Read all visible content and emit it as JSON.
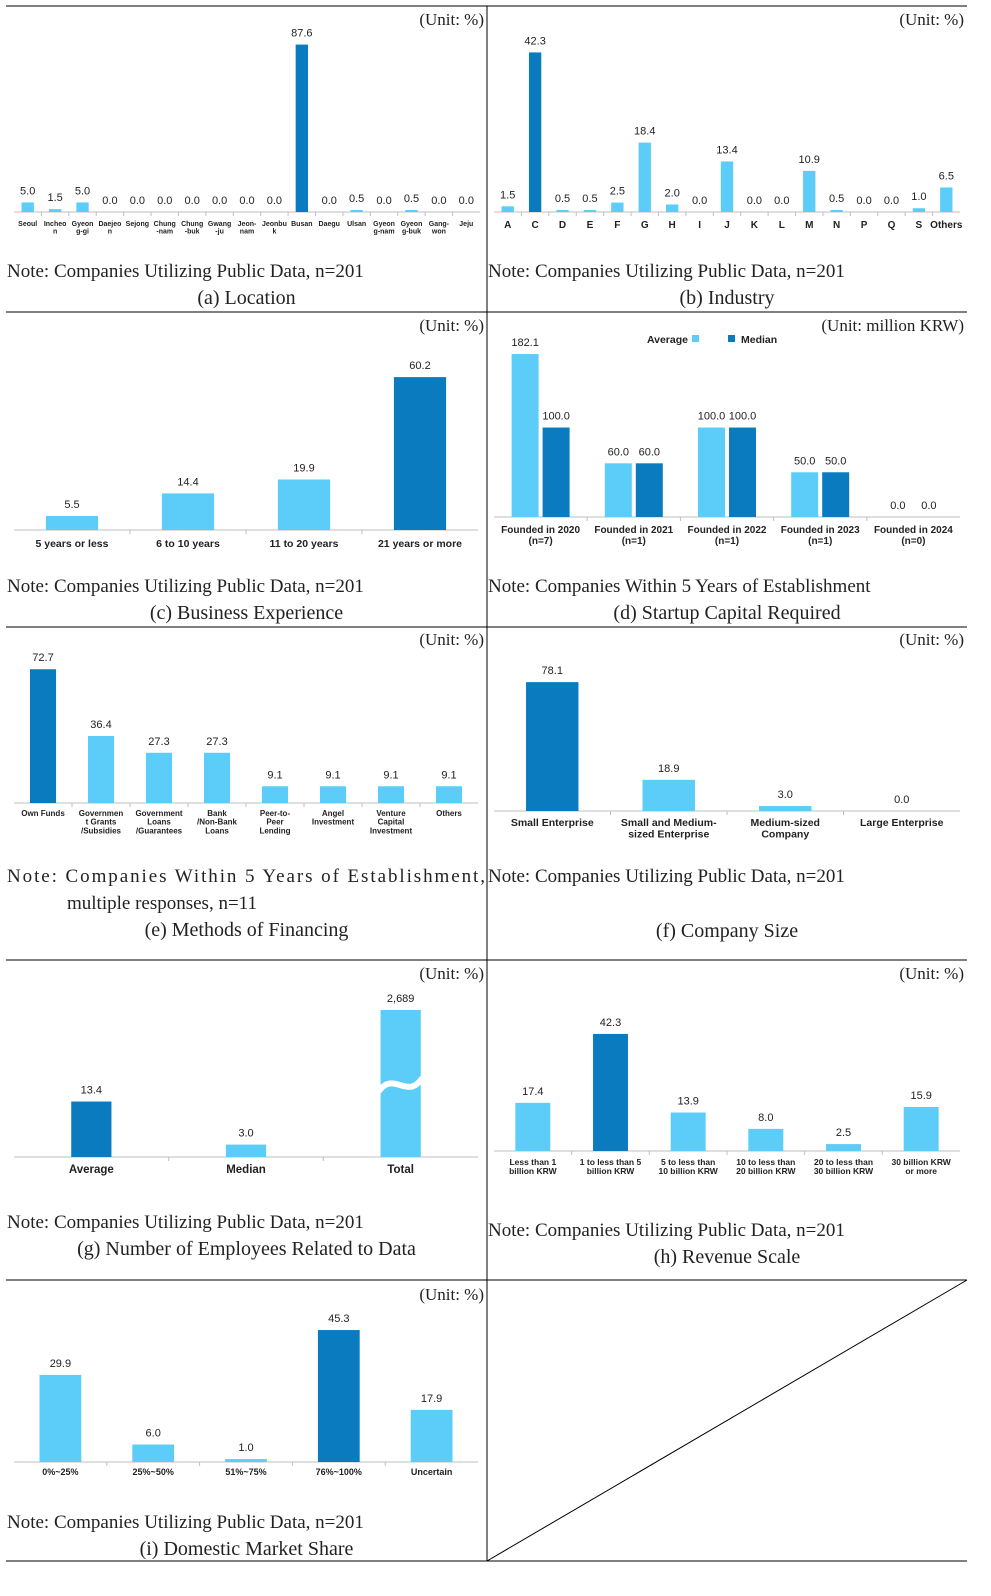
{
  "colors": {
    "light": "#5bcdf8",
    "dark": "#0a7bbf",
    "axis": "#bfbfbf",
    "text": "#222222",
    "border": "#000000"
  },
  "chart_data": [
    {
      "id": "a",
      "type": "bar",
      "unit": "(Unit: %)",
      "categories": [
        "Seoul",
        "Incheon",
        "Gyeongg-gi",
        "Daejeon",
        "Sejong",
        "Chung-nam",
        "Chung-buk",
        "Gwang-ju",
        "Jeon-nam",
        "Jeonbuk",
        "Busan",
        "Daegu",
        "Ulsan",
        "Gyeong-nam",
        "Gyeong-buk",
        "Gang-won",
        "Jeju"
      ],
      "tick_labels": [
        [
          "Seoul"
        ],
        [
          "Incheo",
          "n"
        ],
        [
          "Gyeon",
          "g-gi"
        ],
        [
          "Daejeo",
          "n"
        ],
        [
          "Sejong"
        ],
        [
          "Chung",
          "-nam"
        ],
        [
          "Chung",
          "-buk"
        ],
        [
          "Gwang",
          "-ju"
        ],
        [
          "Jeon-",
          "nam"
        ],
        [
          "Jeonbu",
          "k"
        ],
        [
          "Busan"
        ],
        [
          "Daegu"
        ],
        [
          "Ulsan"
        ],
        [
          "Gyeon",
          "g-nam"
        ],
        [
          "Gyeon",
          "g-buk"
        ],
        [
          "Gang-",
          "won"
        ],
        [
          "Jeju"
        ]
      ],
      "values": [
        5.0,
        1.5,
        5.0,
        0.0,
        0.0,
        0.0,
        0.0,
        0.0,
        0.0,
        0.0,
        87.6,
        0.0,
        0.5,
        0.0,
        0.5,
        0.0,
        0.0
      ],
      "labels": [
        "5.0",
        "1.5",
        "5.0",
        "0.0",
        "0.0",
        "0.0",
        "0.0",
        "0.0",
        "0.0",
        "0.0",
        "87.6",
        "0.0",
        "0.5",
        "0.0",
        "0.5",
        "0.0",
        "0.0"
      ],
      "highlight": [
        10
      ],
      "ylim": [
        0,
        90
      ],
      "note": [
        "Note: Companies Utilizing Public Data, n=201"
      ],
      "caption": "(a) Location"
    },
    {
      "id": "b",
      "type": "bar",
      "unit": "(Unit: %)",
      "categories": [
        "A",
        "C",
        "D",
        "E",
        "F",
        "G",
        "H",
        "I",
        "J",
        "K",
        "L",
        "M",
        "N",
        "P",
        "Q",
        "S",
        "Others"
      ],
      "tick_labels": [
        [
          "A"
        ],
        [
          "C"
        ],
        [
          "D"
        ],
        [
          "E"
        ],
        [
          "F"
        ],
        [
          "G"
        ],
        [
          "H"
        ],
        [
          "I"
        ],
        [
          "J"
        ],
        [
          "K"
        ],
        [
          "L"
        ],
        [
          "M"
        ],
        [
          "N"
        ],
        [
          "P"
        ],
        [
          "Q"
        ],
        [
          "S"
        ],
        [
          "Others"
        ]
      ],
      "values": [
        1.5,
        42.3,
        0.5,
        0.5,
        2.5,
        18.4,
        2.0,
        0.0,
        13.4,
        0.0,
        0.0,
        10.9,
        0.5,
        0.0,
        0.0,
        1.0,
        6.5
      ],
      "labels": [
        "1.5",
        "42.3",
        "0.5",
        "0.5",
        "2.5",
        "18.4",
        "2.0",
        "0.0",
        "13.4",
        "0.0",
        "0.0",
        "10.9",
        "0.5",
        "0.0",
        "0.0",
        "1.0",
        "6.5"
      ],
      "highlight": [
        1
      ],
      "ylim": [
        0,
        44
      ],
      "note": [
        "Note: Companies Utilizing Public Data, n=201"
      ],
      "caption": "(b) Industry"
    },
    {
      "id": "c",
      "type": "bar",
      "unit": "(Unit: %)",
      "categories": [
        "5 years or less",
        "6 to 10 years",
        "11 to 20 years",
        "21 years or more"
      ],
      "tick_labels": [
        [
          "5 years or less"
        ],
        [
          "6 to 10 years"
        ],
        [
          "11 to 20 years"
        ],
        [
          "21 years or more"
        ]
      ],
      "values": [
        5.5,
        14.4,
        19.9,
        60.2
      ],
      "labels": [
        "5.5",
        "14.4",
        "19.9",
        "60.2"
      ],
      "highlight": [
        3
      ],
      "ylim": [
        0,
        63
      ],
      "note": [
        "Note: Companies Utilizing Public Data, n=201"
      ],
      "caption": "(c) Business Experience"
    },
    {
      "id": "d",
      "type": "bar",
      "unit": "(Unit: million KRW)",
      "legend": [
        "Average",
        "Median"
      ],
      "categories": [
        "Founded in 2020",
        "Founded in 2021",
        "Founded in 2022",
        "Founded in 2023",
        "Founded in 2024"
      ],
      "tick_labels": [
        [
          "Founded in 2020",
          "(n=7)"
        ],
        [
          "Founded in 2021",
          "(n=1)"
        ],
        [
          "Founded in 2022",
          "(n=1)"
        ],
        [
          "Founded in 2023",
          "(n=1)"
        ],
        [
          "Founded in 2024",
          "(n=0)"
        ]
      ],
      "series": [
        {
          "name": "Average",
          "values": [
            182.1,
            60.0,
            100.0,
            50.0,
            0.0
          ],
          "labels": [
            "182.1",
            "60.0",
            "100.0",
            "50.0",
            "0.0"
          ]
        },
        {
          "name": "Median",
          "values": [
            100.0,
            60.0,
            100.0,
            50.0,
            0.0
          ],
          "labels": [
            "100.0",
            "60.0",
            "100.0",
            "50.0",
            "0.0"
          ]
        }
      ],
      "ylim": [
        0,
        190
      ],
      "note": [
        "Note: Companies Within 5 Years of Establishment"
      ],
      "caption": "(d) Startup Capital Required"
    },
    {
      "id": "e",
      "type": "bar",
      "unit": "(Unit: %)",
      "categories": [
        "Own Funds",
        "Government Grants/Subsidies",
        "Government Loans/Guarantees",
        "Bank/Non-Bank Loans",
        "Peer-to-Peer Lending",
        "Angel Investment",
        "Venture Capital Investment",
        "Others"
      ],
      "tick_labels": [
        [
          "Own Funds"
        ],
        [
          "Governmen",
          "t Grants",
          "/Subsidies"
        ],
        [
          "Government",
          "Loans",
          "/Guarantees"
        ],
        [
          "Bank",
          "/Non-Bank",
          "Loans"
        ],
        [
          "Peer-to-",
          "Peer",
          "Lending"
        ],
        [
          "Angel",
          "Investment"
        ],
        [
          "Venture",
          "Capital",
          "Investment"
        ],
        [
          "Others"
        ]
      ],
      "values": [
        72.7,
        36.4,
        27.3,
        27.3,
        9.1,
        9.1,
        9.1,
        9.1
      ],
      "labels": [
        "72.7",
        "36.4",
        "27.3",
        "27.3",
        "9.1",
        "9.1",
        "9.1",
        "9.1"
      ],
      "highlight": [
        0
      ],
      "ylim": [
        0,
        75
      ],
      "note": [
        "Note: Companies Within 5 Years of Establishment,",
        "multiple responses, n=11"
      ],
      "caption": "(e) Methods of Financing"
    },
    {
      "id": "f",
      "type": "bar",
      "unit": "(Unit: %)",
      "categories": [
        "Small Enterprise",
        "Small and Medium-sized Enterprise",
        "Medium-sized Company",
        "Large Enterprise"
      ],
      "tick_labels": [
        [
          "Small Enterprise"
        ],
        [
          "Small and Medium-",
          "sized Enterprise"
        ],
        [
          "Medium-sized",
          "Company"
        ],
        [
          "Large Enterprise"
        ]
      ],
      "values": [
        78.1,
        18.9,
        3.0,
        0.0
      ],
      "labels": [
        "78.1",
        "18.9",
        "3.0",
        "0.0"
      ],
      "highlight": [
        0
      ],
      "ylim": [
        0,
        80
      ],
      "note": [
        "Note: Companies Utilizing Public Data, n=201"
      ],
      "caption": "(f) Company Size"
    },
    {
      "id": "g",
      "type": "bar",
      "unit": "(Unit: %)",
      "categories": [
        "Average",
        "Median",
        "Total"
      ],
      "tick_labels": [
        [
          "Average"
        ],
        [
          "Median"
        ],
        [
          "Total"
        ]
      ],
      "values": [
        13.4,
        3.0,
        2689
      ],
      "labels": [
        "13.4",
        "3.0",
        "2,689"
      ],
      "highlight": [
        0
      ],
      "broken_axis_bar": 2,
      "note": [
        "Note: Companies Utilizing Public Data, n=201"
      ],
      "caption": "(g) Number of Employees Related to Data"
    },
    {
      "id": "h",
      "type": "bar",
      "unit": "(Unit: %)",
      "categories": [
        "Less than 1 billion KRW",
        "1 to less than 5 billion KRW",
        "5 to less than 10 billion KRW",
        "10 to less than 20 billion KRW",
        "20 to less than 30 billion KRW",
        "30 billion KRW or more"
      ],
      "tick_labels": [
        [
          "Less than 1",
          "billion KRW"
        ],
        [
          "1 to less than 5",
          "billion KRW"
        ],
        [
          "5 to less than",
          "10 billion KRW"
        ],
        [
          "10 to less than",
          "20 billion KRW"
        ],
        [
          "20 to less than",
          "30 billion KRW"
        ],
        [
          "30 billion KRW",
          "or more"
        ]
      ],
      "values": [
        17.4,
        42.3,
        13.9,
        8.0,
        2.5,
        15.9
      ],
      "labels": [
        "17.4",
        "42.3",
        "13.9",
        "8.0",
        "2.5",
        "15.9"
      ],
      "highlight": [
        1
      ],
      "ylim": [
        0,
        43
      ],
      "note": [
        "Note: Companies Utilizing Public Data, n=201"
      ],
      "caption": "(h) Revenue Scale"
    },
    {
      "id": "i",
      "type": "bar",
      "unit": "(Unit: %)",
      "categories": [
        "0%~25%",
        "25%~50%",
        "51%~75%",
        "76%~100%",
        "Uncertain"
      ],
      "tick_labels": [
        [
          "0%~25%"
        ],
        [
          "25%~50%"
        ],
        [
          "51%~75%"
        ],
        [
          "76%~100%"
        ],
        [
          "Uncertain"
        ]
      ],
      "values": [
        29.9,
        6.0,
        1.0,
        45.3,
        17.9
      ],
      "labels": [
        "29.9",
        "6.0",
        "1.0",
        "45.3",
        "17.9"
      ],
      "highlight": [
        3
      ],
      "ylim": [
        0,
        46
      ],
      "note": [
        "Note: Companies Utilizing Public Data, n=201"
      ],
      "caption": "(i) Domestic Market Share"
    }
  ]
}
